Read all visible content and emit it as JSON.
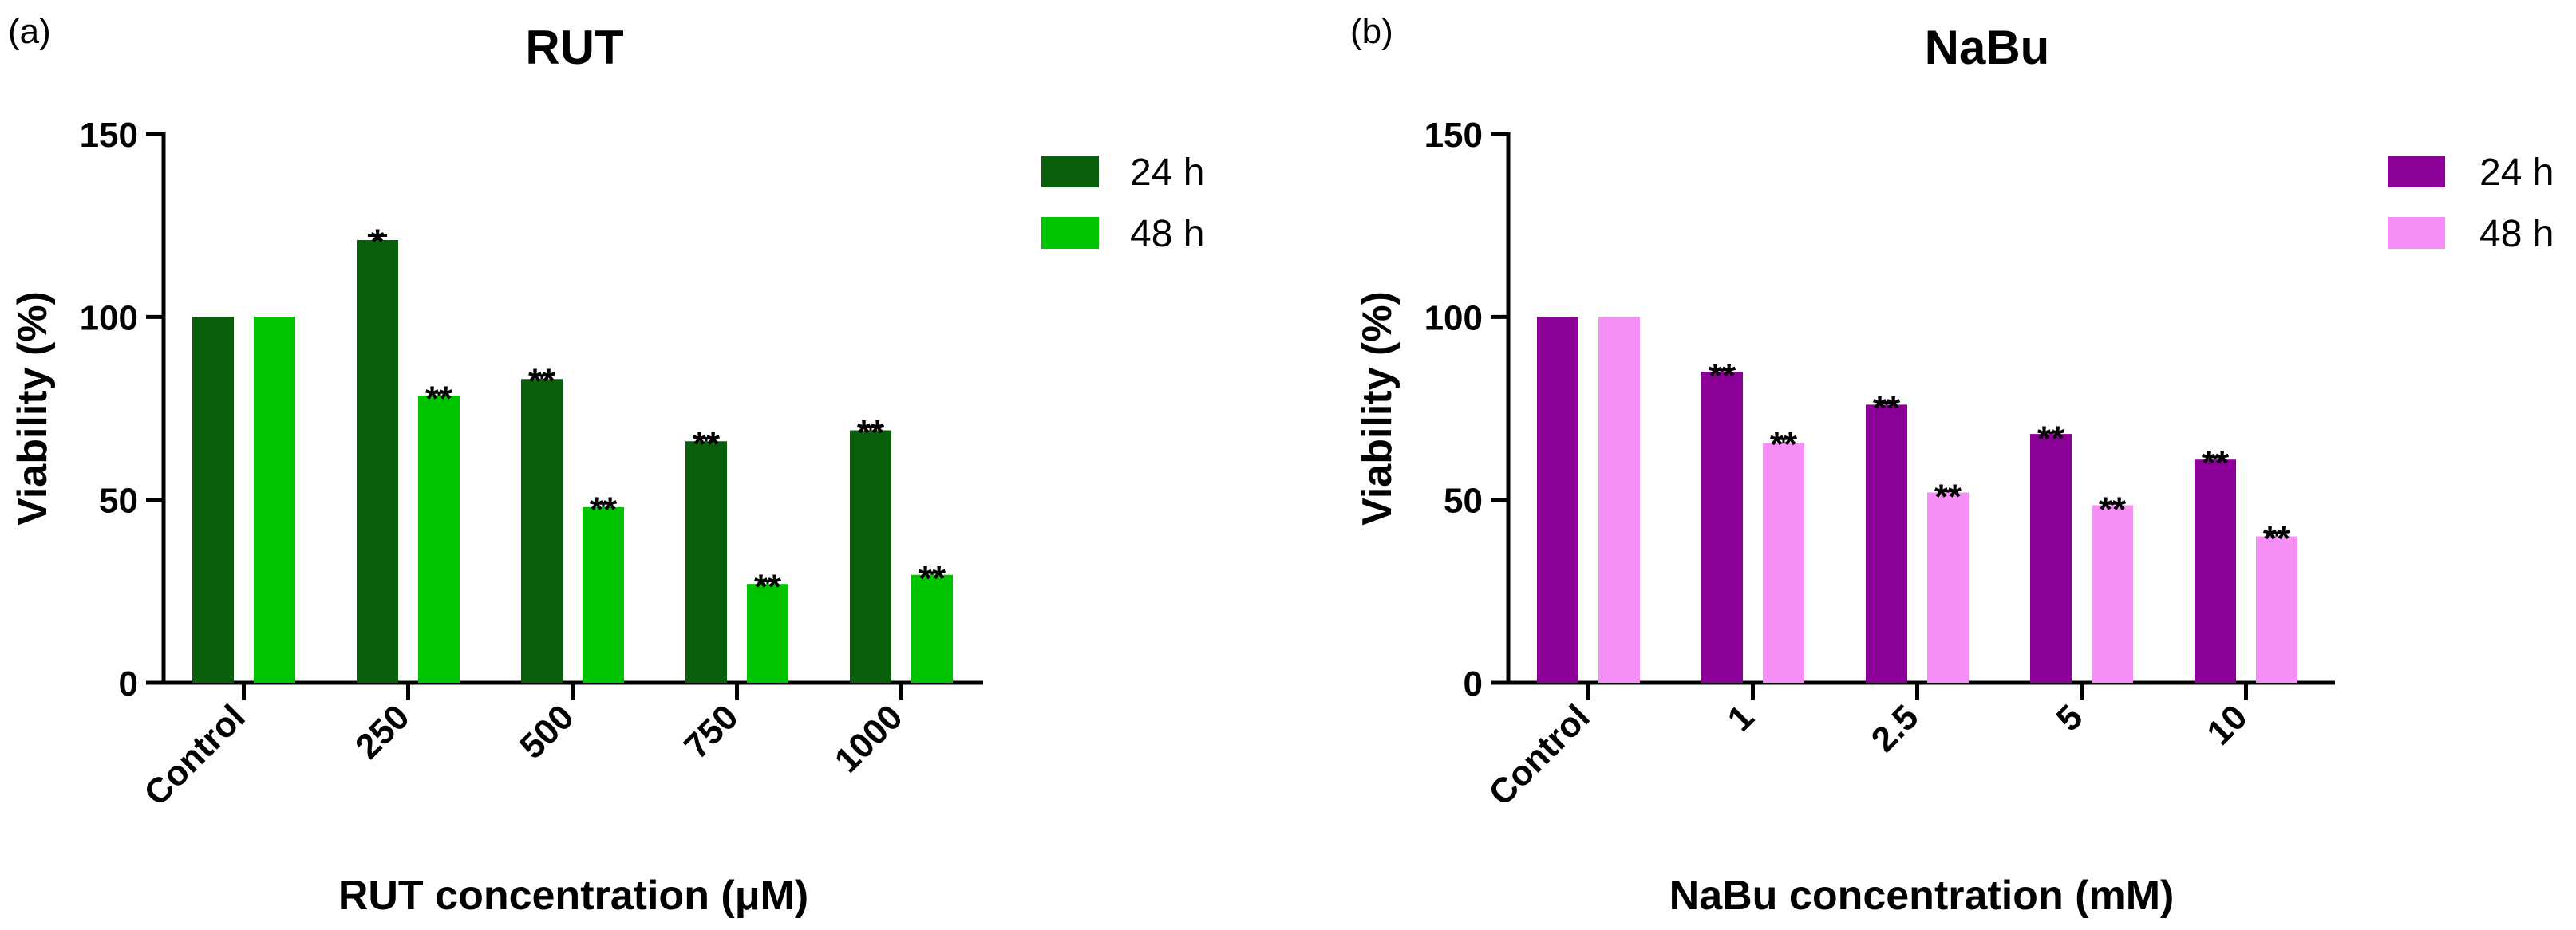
{
  "chart_data": [
    {
      "type": "bar",
      "panel_label": "(a)",
      "title": "RUT",
      "xlabel": "RUT concentration (μM)",
      "ylabel": "Viability (%)",
      "ylim": [
        0,
        150
      ],
      "yticks": [
        "0",
        "50",
        "100",
        "150"
      ],
      "categories": [
        "Control",
        "250",
        "500",
        "750",
        "1000"
      ],
      "series": [
        {
          "name": "24 h",
          "color": "#0b5e0b",
          "values": [
            100,
            121,
            83,
            66,
            69
          ],
          "errors": [
            0,
            1.2,
            1.0,
            0.8,
            1.0
          ],
          "sig": [
            "",
            "*",
            "**",
            "**",
            "**"
          ]
        },
        {
          "name": "48 h",
          "color": "#00c400",
          "values": [
            100,
            78.5,
            48,
            27,
            29.5
          ],
          "errors": [
            0,
            0.8,
            1.0,
            0.8,
            0.6
          ],
          "sig": [
            "",
            "**",
            "**",
            "**",
            "**"
          ]
        }
      ],
      "legend": "top-right"
    },
    {
      "type": "bar",
      "panel_label": "(b)",
      "title": "NaBu",
      "xlabel": "NaBu concentration (mM)",
      "ylabel": "Viability (%)",
      "ylim": [
        0,
        150
      ],
      "yticks": [
        "0",
        "50",
        "100",
        "150"
      ],
      "categories": [
        "Control",
        "1",
        "2.5",
        "5",
        "10"
      ],
      "series": [
        {
          "name": "24 h",
          "color": "#8b0096",
          "values": [
            100,
            85,
            76,
            68,
            61
          ],
          "errors": [
            0,
            0.5,
            0.6,
            0.4,
            0.7
          ],
          "sig": [
            "",
            "**",
            "**",
            "**",
            "**"
          ]
        },
        {
          "name": "48 h",
          "color": "#f690f6",
          "values": [
            100,
            65.5,
            52,
            48.5,
            40
          ],
          "errors": [
            0,
            1.2,
            0.4,
            0.5,
            1.0
          ],
          "sig": [
            "",
            "**",
            "**",
            "**",
            "**"
          ]
        }
      ],
      "legend": "top-right"
    }
  ]
}
